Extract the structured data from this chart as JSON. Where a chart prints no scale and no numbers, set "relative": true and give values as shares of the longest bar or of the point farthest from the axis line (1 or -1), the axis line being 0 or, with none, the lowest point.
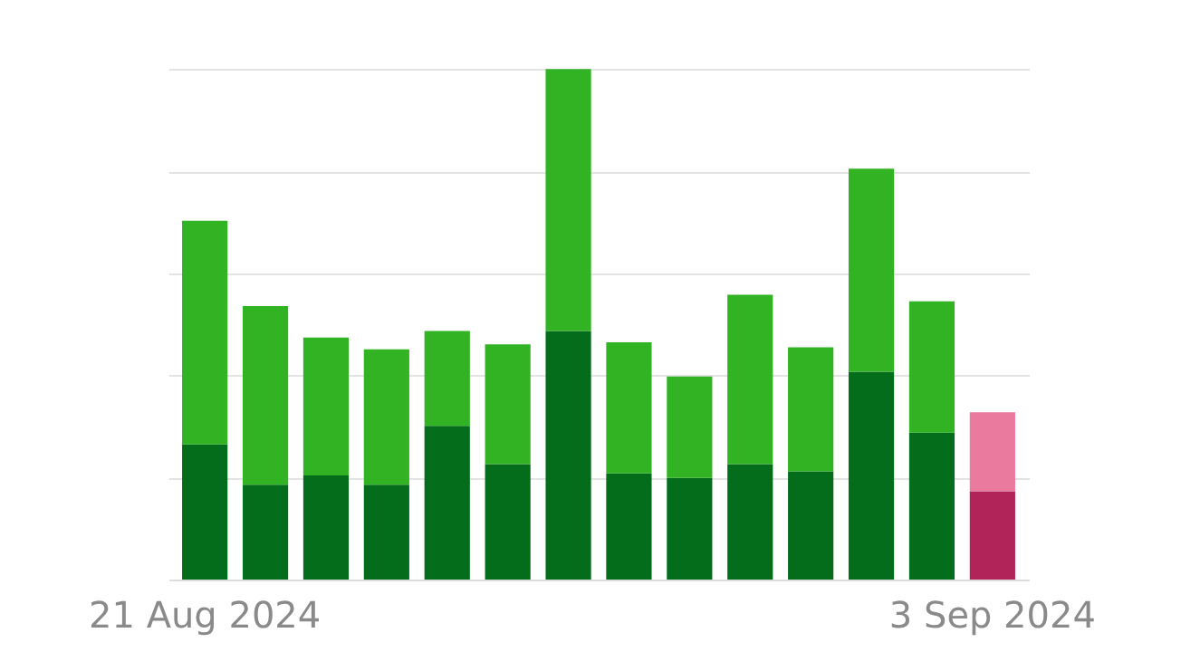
{
  "chart_data": {
    "type": "bar",
    "stacked": true,
    "relative": true,
    "grid": true,
    "categories": [
      "21 Aug 2024",
      null,
      null,
      null,
      null,
      null,
      null,
      null,
      null,
      null,
      null,
      null,
      null,
      "3 Sep 2024"
    ],
    "series": [
      {
        "colors": [
          "#036d1c",
          "#036d1c",
          "#036d1c",
          "#036d1c",
          "#036d1c",
          "#036d1c",
          "#036d1c",
          "#036d1c",
          "#036d1c",
          "#036d1c",
          "#036d1c",
          "#036d1c",
          "#036d1c",
          "#b0245a"
        ],
        "values": [
          0.265,
          0.186,
          0.204,
          0.186,
          0.301,
          0.226,
          0.487,
          0.208,
          0.199,
          0.226,
          0.212,
          0.407,
          0.288,
          0.173
        ]
      },
      {
        "colors": [
          "#32b324",
          "#32b324",
          "#32b324",
          "#32b324",
          "#32b324",
          "#32b324",
          "#32b324",
          "#32b324",
          "#32b324",
          "#32b324",
          "#32b324",
          "#32b324",
          "#32b324",
          "#ea7a9e"
        ],
        "values": [
          0.438,
          0.35,
          0.27,
          0.265,
          0.186,
          0.235,
          0.513,
          0.257,
          0.199,
          0.332,
          0.243,
          0.398,
          0.257,
          0.155
        ]
      }
    ]
  }
}
